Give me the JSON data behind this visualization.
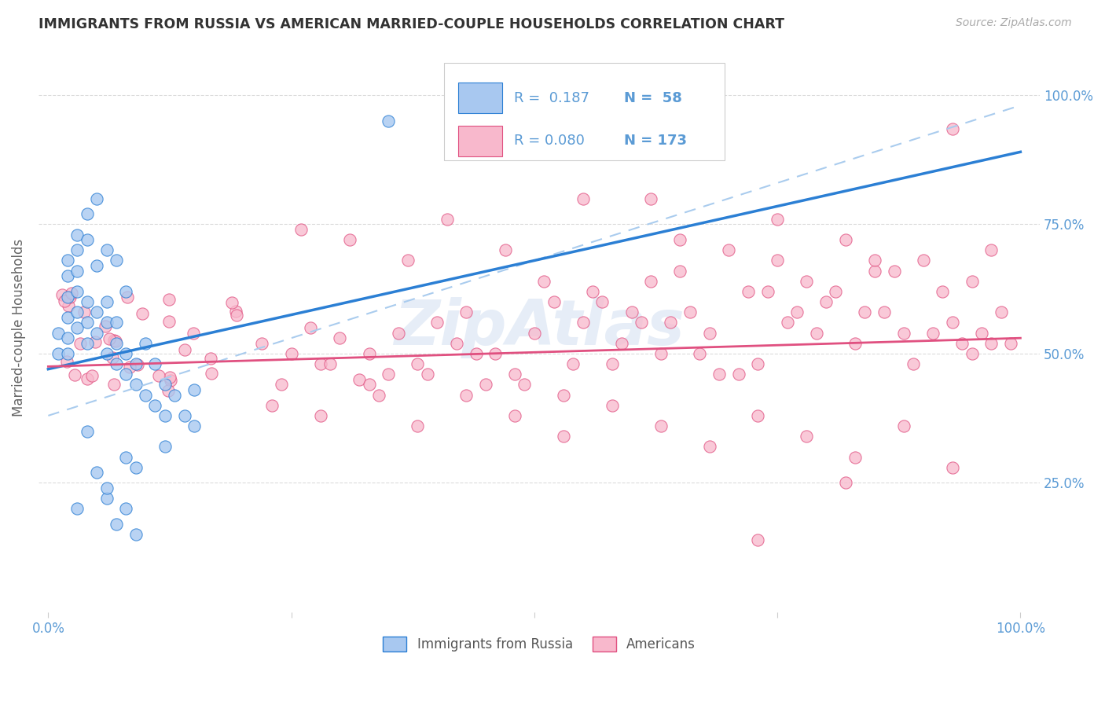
{
  "title": "IMMIGRANTS FROM RUSSIA VS AMERICAN MARRIED-COUPLE HOUSEHOLDS CORRELATION CHART",
  "source": "Source: ZipAtlas.com",
  "ylabel": "Married-couple Households",
  "right_yticks": [
    "25.0%",
    "50.0%",
    "75.0%",
    "100.0%"
  ],
  "right_ytick_vals": [
    0.25,
    0.5,
    0.75,
    1.0
  ],
  "watermark": "ZipAtlas",
  "blue_scatter_color": "#A8C8F0",
  "pink_scatter_color": "#F8B8CC",
  "blue_line_color": "#2B7FD4",
  "pink_line_color": "#E05080",
  "dashed_line_color": "#AACCEE",
  "title_color": "#333333",
  "axis_color": "#5B9BD5",
  "grid_color": "#D8D8D8",
  "background_color": "#FFFFFF",
  "legend_label1": "Immigrants from Russia",
  "legend_label2": "Americans",
  "blue_R": 0.187,
  "blue_N": 58,
  "pink_R": 0.08,
  "pink_N": 173,
  "blue_intercept": 0.47,
  "blue_slope": 0.42,
  "pink_intercept": 0.475,
  "pink_slope": 0.055,
  "dashed_intercept": 0.38,
  "dashed_slope": 0.6
}
